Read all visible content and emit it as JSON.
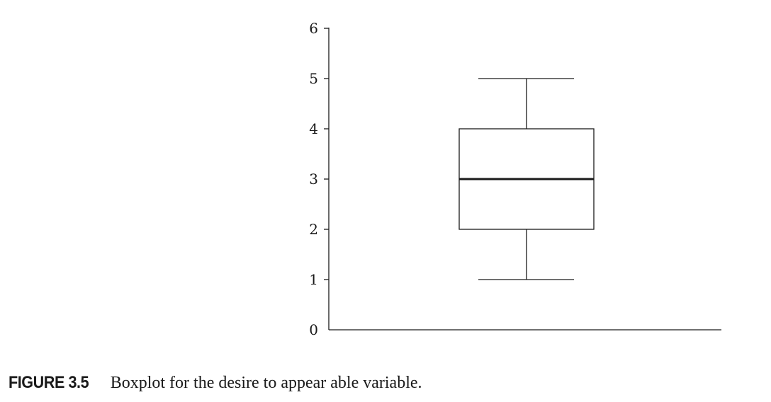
{
  "figure": {
    "label": "FIGURE 3.5",
    "caption": "Boxplot for the desire to appear able variable."
  },
  "chart_data": {
    "type": "boxplot",
    "title": "",
    "xlabel": "",
    "ylabel": "",
    "ylim": [
      0,
      6
    ],
    "yticks": [
      "0",
      "1",
      "2",
      "3",
      "4",
      "5",
      "6"
    ],
    "grid": false,
    "box": {
      "whisker_low": 1,
      "q1": 2,
      "median": 3,
      "q3": 4,
      "whisker_high": 5
    },
    "colors": {
      "stroke": "#1a1a1a",
      "fill": "#ffffff"
    }
  }
}
